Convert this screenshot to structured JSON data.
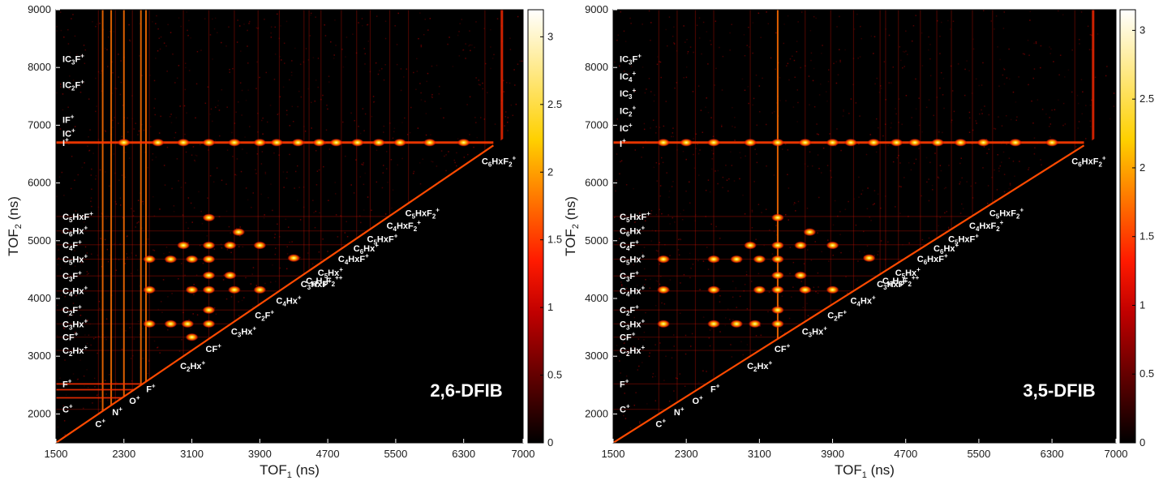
{
  "chart_data": [
    {
      "type": "heatmap",
      "sample_label": "2,6-DFIB",
      "xlabel": "TOF1 (ns)",
      "ylabel": "TOF2 (ns)",
      "xlim": [
        1500,
        7000
      ],
      "ylim": [
        1500,
        9000
      ],
      "x_ticks": [
        "1500",
        "2300",
        "3100",
        "3900",
        "4700",
        "5500",
        "6300",
        "7000"
      ],
      "y_ticks": [
        "2000",
        "3000",
        "4000",
        "5000",
        "6000",
        "7000",
        "8000",
        "9000"
      ],
      "colorbar": {
        "range": [
          0,
          3.2
        ],
        "ticks": [
          "0",
          "0.5",
          "1",
          "1.5",
          "2",
          "2.5",
          "3"
        ]
      },
      "left_ion_labels": [
        {
          "text": "IC3F+",
          "y": 8150
        },
        {
          "text": "IC2F+",
          "y": 7700
        },
        {
          "text": "IF+",
          "y": 7100
        },
        {
          "text": "IC+",
          "y": 6860
        },
        {
          "text": "I+",
          "y": 6700
        },
        {
          "text": "C5HxF+",
          "y": 5420
        },
        {
          "text": "C6Hx+",
          "y": 5170
        },
        {
          "text": "C4F+",
          "y": 4930
        },
        {
          "text": "C5Hx+",
          "y": 4680
        },
        {
          "text": "C3F+",
          "y": 4390
        },
        {
          "text": "C4Hx+",
          "y": 4130
        },
        {
          "text": "C2F+",
          "y": 3800
        },
        {
          "text": "C3Hx+",
          "y": 3560
        },
        {
          "text": "CF+",
          "y": 3330
        },
        {
          "text": "C2Hx+",
          "y": 3100
        },
        {
          "text": "F+",
          "y": 2520
        },
        {
          "text": "C+",
          "y": 2080
        }
      ],
      "diagonal_ion_labels": [
        {
          "text": "C+",
          "x": 2000
        },
        {
          "text": "N+",
          "x": 2200
        },
        {
          "text": "O+",
          "x": 2400
        },
        {
          "text": "F+",
          "x": 2600
        },
        {
          "text": "C2Hx+",
          "x": 3000
        },
        {
          "text": "CF+",
          "x": 3300
        },
        {
          "text": "C3Hx+",
          "x": 3600
        },
        {
          "text": "C2F+",
          "x": 3880
        },
        {
          "text": "C4Hx+",
          "x": 4130
        },
        {
          "text": "C3HxF+",
          "x": 4420
        },
        {
          "text": "C6H3F2++",
          "x": 4480
        },
        {
          "text": "C5Hx+",
          "x": 4620
        },
        {
          "text": "C4HxF+",
          "x": 4860
        },
        {
          "text": "C6Hx+",
          "x": 5040
        },
        {
          "text": "C5HxF+",
          "x": 5200
        },
        {
          "text": "C4HxF2+",
          "x": 5430
        },
        {
          "text": "C5HxF2+",
          "x": 5650
        },
        {
          "text": "C6HxF2+",
          "x": 6550
        }
      ],
      "bright_spots": [
        [
          2300,
          6700
        ],
        [
          2700,
          6700
        ],
        [
          3000,
          6700
        ],
        [
          3300,
          6700
        ],
        [
          3600,
          6700
        ],
        [
          3900,
          6700
        ],
        [
          4100,
          6700
        ],
        [
          4350,
          6700
        ],
        [
          4600,
          6700
        ],
        [
          4800,
          6700
        ],
        [
          5050,
          6700
        ],
        [
          5300,
          6700
        ],
        [
          5550,
          6700
        ],
        [
          5900,
          6700
        ],
        [
          6300,
          6700
        ],
        [
          3300,
          5400
        ],
        [
          3650,
          5150
        ],
        [
          4300,
          4700
        ],
        [
          3300,
          4680
        ],
        [
          3100,
          4680
        ],
        [
          2850,
          4680
        ],
        [
          3300,
          4400
        ],
        [
          3550,
          4400
        ],
        [
          3100,
          4150
        ],
        [
          3300,
          4150
        ],
        [
          3600,
          4150
        ],
        [
          3900,
          4150
        ],
        [
          3300,
          3800
        ],
        [
          3300,
          3560
        ],
        [
          3050,
          3560
        ],
        [
          2850,
          3560
        ],
        [
          3100,
          3330
        ],
        [
          3000,
          4920
        ],
        [
          3300,
          4920
        ],
        [
          3550,
          4920
        ],
        [
          3900,
          4920
        ],
        [
          2600,
          4680
        ],
        [
          2600,
          4150
        ],
        [
          2600,
          3560
        ]
      ],
      "vertical_bright_lines": [
        2050,
        2150,
        2300,
        2500,
        2560
      ],
      "horizontal_bright_lines": [
        2520,
        2420,
        2280
      ],
      "diagonal_end": 6650
    },
    {
      "type": "heatmap",
      "sample_label": "3,5-DFIB",
      "xlabel": "TOF1 (ns)",
      "ylabel": "TOF2 (ns)",
      "xlim": [
        1500,
        7000
      ],
      "ylim": [
        1500,
        9000
      ],
      "x_ticks": [
        "1500",
        "2300",
        "3100",
        "3900",
        "4700",
        "5500",
        "6300",
        "7000"
      ],
      "y_ticks": [
        "2000",
        "3000",
        "4000",
        "5000",
        "6000",
        "7000",
        "8000",
        "9000"
      ],
      "colorbar": {
        "range": [
          0,
          3.15
        ],
        "ticks": [
          "0",
          "0.5",
          "1",
          "1.5",
          "2",
          "2.5",
          "3"
        ]
      },
      "left_ion_labels": [
        {
          "text": "IC3F+",
          "y": 8150
        },
        {
          "text": "IC4+",
          "y": 7850
        },
        {
          "text": "IC3+",
          "y": 7550
        },
        {
          "text": "IC2+",
          "y": 7250
        },
        {
          "text": "IC+",
          "y": 6950
        },
        {
          "text": "I+",
          "y": 6680
        },
        {
          "text": "C5HxF+",
          "y": 5420
        },
        {
          "text": "C6Hx+",
          "y": 5170
        },
        {
          "text": "C4F+",
          "y": 4930
        },
        {
          "text": "C5Hx+",
          "y": 4680
        },
        {
          "text": "C3F+",
          "y": 4390
        },
        {
          "text": "C4Hx+",
          "y": 4130
        },
        {
          "text": "C2F+",
          "y": 3800
        },
        {
          "text": "C3Hx+",
          "y": 3560
        },
        {
          "text": "CF+",
          "y": 3330
        },
        {
          "text": "C2Hx+",
          "y": 3100
        },
        {
          "text": "F+",
          "y": 2520
        },
        {
          "text": "C+",
          "y": 2080
        }
      ],
      "diagonal_ion_labels": [
        {
          "text": "C+",
          "x": 2000
        },
        {
          "text": "N+",
          "x": 2200
        },
        {
          "text": "O+",
          "x": 2400
        },
        {
          "text": "F+",
          "x": 2600
        },
        {
          "text": "C2Hx+",
          "x": 3000
        },
        {
          "text": "CF+",
          "x": 3300
        },
        {
          "text": "C3Hx+",
          "x": 3600
        },
        {
          "text": "C2F+",
          "x": 3880
        },
        {
          "text": "C4Hx+",
          "x": 4130
        },
        {
          "text": "C3HxF+",
          "x": 4420
        },
        {
          "text": "C6H3F2++",
          "x": 4480
        },
        {
          "text": "C5Hx+",
          "x": 4620
        },
        {
          "text": "C6HxF+",
          "x": 4860
        },
        {
          "text": "C6Hx+",
          "x": 5040
        },
        {
          "text": "C5HxF+",
          "x": 5200
        },
        {
          "text": "C4HxF2+",
          "x": 5430
        },
        {
          "text": "C5HxF2+",
          "x": 5650
        },
        {
          "text": "C6HxF2+",
          "x": 6550
        }
      ],
      "bright_spots": [
        [
          2050,
          6700
        ],
        [
          2300,
          6700
        ],
        [
          2600,
          6700
        ],
        [
          3000,
          6700
        ],
        [
          3300,
          6700
        ],
        [
          3600,
          6700
        ],
        [
          3900,
          6700
        ],
        [
          4100,
          6700
        ],
        [
          4350,
          6700
        ],
        [
          4600,
          6700
        ],
        [
          4800,
          6700
        ],
        [
          5050,
          6700
        ],
        [
          5300,
          6700
        ],
        [
          5550,
          6700
        ],
        [
          5900,
          6700
        ],
        [
          6300,
          6700
        ],
        [
          3300,
          5400
        ],
        [
          3650,
          5150
        ],
        [
          4300,
          4700
        ],
        [
          3300,
          4680
        ],
        [
          3100,
          4680
        ],
        [
          2850,
          4680
        ],
        [
          3300,
          4400
        ],
        [
          3550,
          4400
        ],
        [
          3100,
          4150
        ],
        [
          3300,
          4150
        ],
        [
          3600,
          4150
        ],
        [
          3900,
          4150
        ],
        [
          3300,
          3800
        ],
        [
          3300,
          3560
        ],
        [
          3050,
          3560
        ],
        [
          2850,
          3560
        ],
        [
          3000,
          4920
        ],
        [
          3300,
          4920
        ],
        [
          3550,
          4920
        ],
        [
          3900,
          4920
        ],
        [
          2600,
          4680
        ],
        [
          2600,
          4150
        ],
        [
          2600,
          3560
        ],
        [
          2050,
          4680
        ],
        [
          2050,
          4150
        ],
        [
          2050,
          3560
        ]
      ],
      "vertical_bright_lines": [
        3300
      ],
      "horizontal_bright_lines": [],
      "diagonal_end": 6650
    }
  ]
}
